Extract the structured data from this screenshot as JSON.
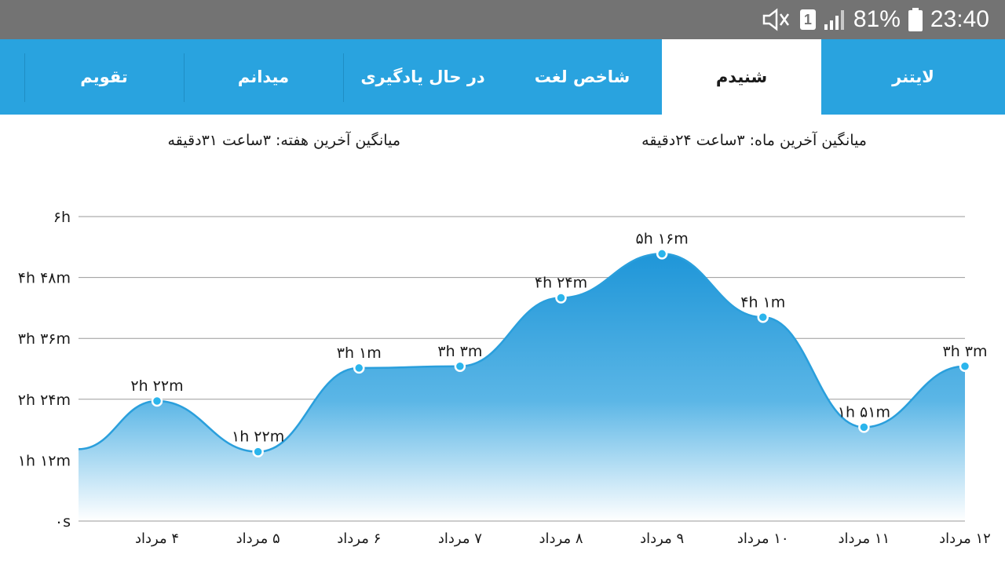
{
  "status_bar": {
    "battery_percent": "81%",
    "time": "23:40",
    "sim_slot": "1",
    "icons": [
      "mute-icon",
      "sim-icon",
      "signal-icon",
      "battery-icon"
    ]
  },
  "tabs": [
    {
      "label": "لایتنر",
      "active": false
    },
    {
      "label": "شنیدم",
      "active": true
    },
    {
      "label": "شاخص لغت",
      "active": false
    },
    {
      "label": "در حال یادگیری",
      "active": false
    },
    {
      "label": "میدانم",
      "active": false
    },
    {
      "label": "تقویم",
      "active": false
    }
  ],
  "averages": {
    "month": "میانگین آخرین ماه:  ۳ساعت  ۲۴دقیقه",
    "week": "میانگین آخرین هفته:  ۳ساعت  ۳۱دقیقه"
  },
  "colors": {
    "accent": "#29a3df",
    "status_bar": "#737373",
    "line": "#2a9fdc",
    "marker_fill": "#2bb5ec"
  },
  "chart_data": {
    "type": "area",
    "y_ticks": [
      {
        "label": "۰s",
        "value": 0
      },
      {
        "label": "۱h ۱۲m",
        "value": 72
      },
      {
        "label": "۲h ۲۴m",
        "value": 144
      },
      {
        "label": "۳h ۳۶m",
        "value": 216
      },
      {
        "label": "۴h ۴۸m",
        "value": 288
      },
      {
        "label": "۶h",
        "value": 360
      }
    ],
    "ylim": [
      0,
      360
    ],
    "grid": true,
    "x_start_value": 85,
    "points": [
      {
        "x_label": "۴ مرداد",
        "value": 142,
        "label": "۲h ۲۲m"
      },
      {
        "x_label": "۵ مرداد",
        "value": 82,
        "label": "۱h ۲۲m"
      },
      {
        "x_label": "۶ مرداد",
        "value": 181,
        "label": "۳h ۱m"
      },
      {
        "x_label": "۷ مرداد",
        "value": 183,
        "label": "۳h ۳m"
      },
      {
        "x_label": "۸ مرداد",
        "value": 264,
        "label": "۴h ۲۴m"
      },
      {
        "x_label": "۹ مرداد",
        "value": 316,
        "label": "۵h ۱۶m"
      },
      {
        "x_label": "۱۰ مرداد",
        "value": 241,
        "label": "۴h ۱m"
      },
      {
        "x_label": "۱۱ مرداد",
        "value": 111,
        "label": "۱h ۵۱m"
      },
      {
        "x_label": "۱۲ مرداد",
        "value": 183,
        "label": "۳h ۳m"
      }
    ]
  }
}
